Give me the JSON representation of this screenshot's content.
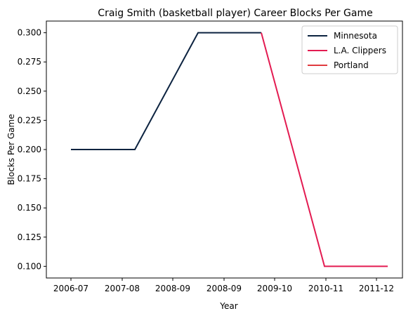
{
  "chart_data": {
    "type": "line",
    "title": "Craig Smith (basketball player) Career Blocks Per Game",
    "xlabel": "Year",
    "ylabel": "Blocks Per Game",
    "x_tick_labels": [
      "2006-07",
      "2007-08",
      "2008-09",
      "2008-09",
      "2009-10",
      "2010-11",
      "2011-12"
    ],
    "y_ticks": [
      "0.100",
      "0.125",
      "0.150",
      "0.175",
      "0.200",
      "0.225",
      "0.250",
      "0.275",
      "0.300"
    ],
    "ylim": [
      0.09,
      0.31
    ],
    "grid": false,
    "legend_position": "top-right",
    "series": [
      {
        "name": "Minnesota",
        "color": "#0c2340",
        "x": [
          "2006-07",
          "2007-08",
          "2008-09",
          "2008-09"
        ],
        "values": [
          0.2,
          0.2,
          0.3,
          0.3
        ]
      },
      {
        "name": "L.A. Clippers",
        "color": "#e31b51",
        "x": [
          "2008-09",
          "2009-10",
          "2010-11",
          "2011-12"
        ],
        "values": [
          0.3,
          0.1,
          0.1,
          0.1
        ]
      },
      {
        "name": "Portland",
        "color": "#e03a3e",
        "x": [],
        "values": []
      }
    ]
  }
}
